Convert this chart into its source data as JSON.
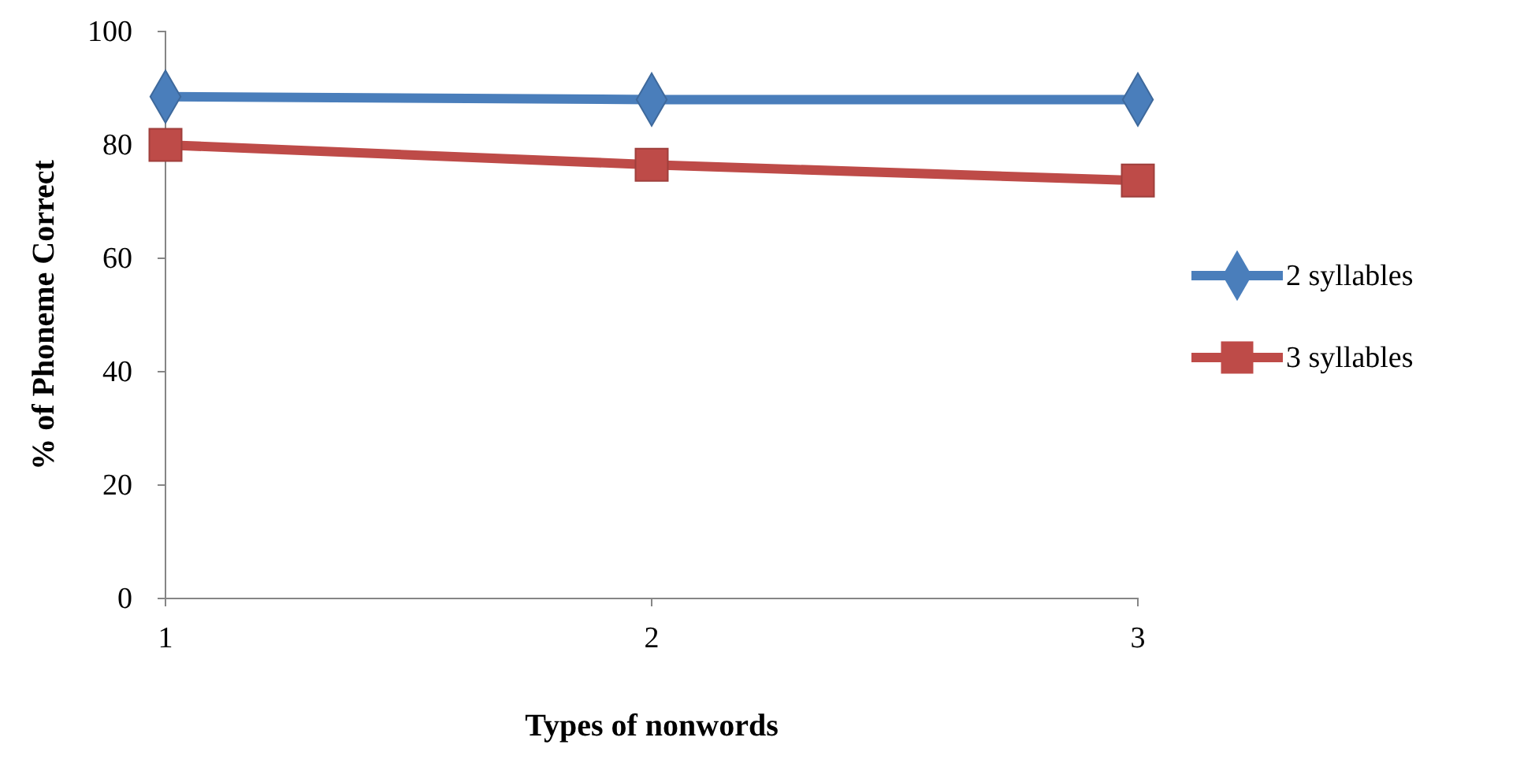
{
  "chart_data": {
    "type": "line",
    "xlabel": "Types of nonwords",
    "ylabel": "% of Phoneme Correct",
    "x": [
      1,
      2,
      3
    ],
    "xlim": [
      1,
      3
    ],
    "xticks": [
      1,
      2,
      3
    ],
    "ylim": [
      0,
      100
    ],
    "yticks": [
      0,
      20,
      40,
      60,
      80,
      100
    ],
    "grid": false,
    "legend": "right",
    "series": [
      {
        "name": "2 syllables",
        "color": "#4a7ebb",
        "marker": "diamond",
        "values": [
          88.5,
          88,
          88
        ]
      },
      {
        "name": "3 syllables",
        "color": "#be4b48",
        "marker": "square",
        "values": [
          80,
          76.5,
          73.7
        ]
      }
    ]
  }
}
